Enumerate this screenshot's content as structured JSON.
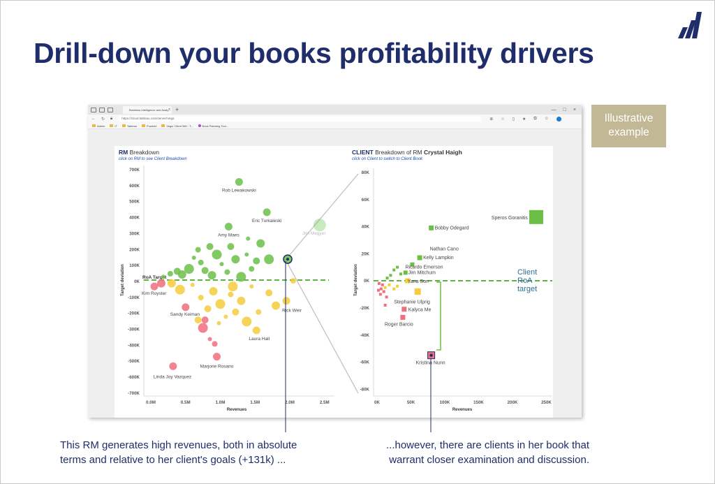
{
  "slide": {
    "title": "Drill-down your books profitability drivers",
    "badge_line1": "Illustrative",
    "badge_line2": "example",
    "caption_left_line1": "This RM generates high revenues, both in absolute",
    "caption_left_line2": "terms and relative to her client's goals (+131k) ...",
    "caption_right_line1": "...however, there are clients in her book that",
    "caption_right_line2": "warrant closer examination and discussion."
  },
  "browser": {
    "tab_title": "Business Intelligence and Analy...",
    "url": "https://cloud.tableau.com/server/Vega",
    "bookmarks": [
      "Admin",
      "IT",
      "Tableau",
      "Powerbi",
      "Vega: Client 360 - T...",
      "Book Planning Tool..."
    ]
  },
  "colors": {
    "navy": "#1f2d6b",
    "badge": "#c3b896",
    "green": "#6bbf46",
    "yellow": "#f5cc3c",
    "red": "#ef6f7c",
    "target_line": "#5fb342",
    "client_target_text": "#2b6e92"
  },
  "rm_chart": {
    "title_bold": "RM",
    "title_rest": " Breakdown",
    "subtitle": "click on RM to see Client Breakdown",
    "xlabel": "Revenues",
    "ylabel": "Target deviation",
    "target_label": "RoA Target",
    "x_ticks": [
      "0.0M",
      "0.5M",
      "1.0M",
      "1.5M",
      "2.0M",
      "2.5M"
    ],
    "y_ticks": [
      "700K",
      "600K",
      "500K",
      "400K",
      "300K",
      "200K",
      "100K",
      "0K",
      "-100K",
      "-200K",
      "-300K",
      "-400K",
      "-500K",
      "-600K",
      "-700K"
    ]
  },
  "client_chart": {
    "title_bold": "CLIENT",
    "title_mid": " Breakdown of RM ",
    "title_name": "Crystal Haigh",
    "subtitle": "click on Client to switch to Client Book",
    "xlabel": "Revenues",
    "ylabel": "Target deviation",
    "target_line1": "Client",
    "target_line2": "RoA",
    "target_line3": "target",
    "x_ticks": [
      "0K",
      "50K",
      "100K",
      "150K",
      "200K",
      "250K"
    ],
    "y_ticks": [
      "80K",
      "60K",
      "40K",
      "20K",
      "0K",
      "-20K",
      "-40K",
      "-60K",
      "-80K"
    ]
  },
  "chart_data": [
    {
      "type": "scatter",
      "title": "RM Breakdown",
      "xlabel": "Revenues",
      "ylabel": "Target deviation",
      "xlim": [
        0,
        2.5
      ],
      "ylim": [
        -700,
        700
      ],
      "x_unit": "M",
      "y_unit": "K",
      "reference_line": {
        "label": "RoA Target",
        "y": 0
      },
      "labeled_points": [
        {
          "name": "Rob Lewakowski",
          "x": 1.27,
          "y": 615,
          "color": "green"
        },
        {
          "name": "Eric Turkaleski",
          "x": 1.67,
          "y": 425,
          "color": "green"
        },
        {
          "name": "Amy Maes",
          "x": 1.12,
          "y": 335,
          "color": "green"
        },
        {
          "name": "Jim Megyer",
          "x": 2.43,
          "y": 345,
          "color": "green"
        },
        {
          "name": "Crystal Haigh",
          "x": 1.97,
          "y": 131,
          "color": "green"
        },
        {
          "name": "Kim Royster",
          "x": 0.05,
          "y": -40,
          "color": "red"
        },
        {
          "name": "Sandy Keiman",
          "x": 0.5,
          "y": -170,
          "color": "red"
        },
        {
          "name": "Rick Weir",
          "x": 1.95,
          "y": -130,
          "color": "yellow"
        },
        {
          "name": "Laura Hall",
          "x": 1.52,
          "y": -315,
          "color": "yellow"
        },
        {
          "name": "Marjorie Rosario",
          "x": 0.95,
          "y": -480,
          "color": "red"
        },
        {
          "name": "Linda Joy Vazquez",
          "x": 0.32,
          "y": -540,
          "color": "red"
        }
      ],
      "cluster_points": [
        {
          "x": 0.18,
          "y": 20,
          "color": "green"
        },
        {
          "x": 0.28,
          "y": 40,
          "color": "green"
        },
        {
          "x": 0.38,
          "y": 55,
          "color": "green"
        },
        {
          "x": 0.45,
          "y": 35,
          "color": "green"
        },
        {
          "x": 0.55,
          "y": 70,
          "color": "green"
        },
        {
          "x": 0.62,
          "y": 140,
          "color": "green"
        },
        {
          "x": 0.72,
          "y": 110,
          "color": "green"
        },
        {
          "x": 0.78,
          "y": 60,
          "color": "green"
        },
        {
          "x": 0.88,
          "y": 30,
          "color": "green"
        },
        {
          "x": 0.95,
          "y": 160,
          "color": "green"
        },
        {
          "x": 1.02,
          "y": 100,
          "color": "green"
        },
        {
          "x": 1.1,
          "y": 50,
          "color": "green"
        },
        {
          "x": 1.15,
          "y": 210,
          "color": "green"
        },
        {
          "x": 1.22,
          "y": 130,
          "color": "green"
        },
        {
          "x": 1.3,
          "y": 20,
          "color": "green"
        },
        {
          "x": 1.38,
          "y": 160,
          "color": "green"
        },
        {
          "x": 1.45,
          "y": 70,
          "color": "green"
        },
        {
          "x": 1.52,
          "y": 120,
          "color": "green"
        },
        {
          "x": 1.58,
          "y": 230,
          "color": "green"
        },
        {
          "x": 1.7,
          "y": 130,
          "color": "green"
        },
        {
          "x": 1.4,
          "y": 260,
          "color": "green"
        },
        {
          "x": 0.68,
          "y": 190,
          "color": "green"
        },
        {
          "x": 0.85,
          "y": 210,
          "color": "green"
        },
        {
          "x": 0.3,
          "y": -20,
          "color": "yellow"
        },
        {
          "x": 0.42,
          "y": -60,
          "color": "yellow"
        },
        {
          "x": 0.6,
          "y": -30,
          "color": "yellow"
        },
        {
          "x": 0.72,
          "y": -110,
          "color": "yellow"
        },
        {
          "x": 0.82,
          "y": -180,
          "color": "yellow"
        },
        {
          "x": 0.9,
          "y": -70,
          "color": "yellow"
        },
        {
          "x": 1.0,
          "y": -150,
          "color": "yellow"
        },
        {
          "x": 1.08,
          "y": -230,
          "color": "yellow"
        },
        {
          "x": 1.15,
          "y": -90,
          "color": "yellow"
        },
        {
          "x": 1.22,
          "y": -200,
          "color": "yellow"
        },
        {
          "x": 1.3,
          "y": -130,
          "color": "yellow"
        },
        {
          "x": 1.38,
          "y": -260,
          "color": "yellow"
        },
        {
          "x": 1.45,
          "y": -40,
          "color": "yellow"
        },
        {
          "x": 1.55,
          "y": -200,
          "color": "yellow"
        },
        {
          "x": 1.7,
          "y": -80,
          "color": "yellow"
        },
        {
          "x": 1.8,
          "y": -160,
          "color": "yellow"
        },
        {
          "x": 1.18,
          "y": -40,
          "color": "yellow"
        },
        {
          "x": 0.98,
          "y": -270,
          "color": "yellow"
        },
        {
          "x": 2.05,
          "y": -5,
          "color": "yellow"
        },
        {
          "x": 0.68,
          "y": -250,
          "color": "yellow"
        },
        {
          "x": 0.15,
          "y": -20,
          "color": "red"
        },
        {
          "x": 0.75,
          "y": -300,
          "color": "red"
        },
        {
          "x": 0.85,
          "y": -370,
          "color": "red"
        },
        {
          "x": 0.92,
          "y": -400,
          "color": "red"
        },
        {
          "x": 0.78,
          "y": -250,
          "color": "red"
        }
      ]
    },
    {
      "type": "scatter",
      "title": "CLIENT Breakdown of RM Crystal Haigh",
      "xlabel": "Revenues",
      "ylabel": "Target deviation",
      "xlim": [
        0,
        250
      ],
      "ylim": [
        -80,
        80
      ],
      "x_unit": "K",
      "y_unit": "K",
      "reference_line": {
        "label": "Client RoA target",
        "y": 0
      },
      "labeled_points": [
        {
          "name": "Speros Goranitis",
          "x": 235,
          "y": 47,
          "color": "green"
        },
        {
          "name": "Bobby Odegard",
          "x": 80,
          "y": 39,
          "color": "green"
        },
        {
          "name": "Nathan Cano",
          "x": 80,
          "y": 29,
          "color": "green"
        },
        {
          "name": "Kelly Lampkin",
          "x": 63,
          "y": 17,
          "color": "green"
        },
        {
          "name": "Ricardo Emerson",
          "x": 52,
          "y": 12,
          "color": "green"
        },
        {
          "name": "Jim Mitchum",
          "x": 42,
          "y": 6,
          "color": "green"
        },
        {
          "name": "Yana Sorr",
          "x": 45,
          "y": 0,
          "color": "yellow"
        },
        {
          "name": "Stephanie Ulprig",
          "x": 60,
          "y": -8,
          "color": "yellow"
        },
        {
          "name": "Kalyca Me",
          "x": 40,
          "y": -21,
          "color": "red"
        },
        {
          "name": "Roger Barcio",
          "x": 38,
          "y": -27,
          "color": "red"
        },
        {
          "name": "Kristina Nunn",
          "x": 80,
          "y": -55,
          "color": "red"
        }
      ],
      "cluster_points": [
        {
          "x": 20,
          "y": 4,
          "color": "green"
        },
        {
          "x": 25,
          "y": 8,
          "color": "green"
        },
        {
          "x": 30,
          "y": 10,
          "color": "green"
        },
        {
          "x": 15,
          "y": 2,
          "color": "green"
        },
        {
          "x": 35,
          "y": 5,
          "color": "green"
        },
        {
          "x": 18,
          "y": -3,
          "color": "yellow"
        },
        {
          "x": 25,
          "y": -6,
          "color": "yellow"
        },
        {
          "x": 30,
          "y": -4,
          "color": "yellow"
        },
        {
          "x": 12,
          "y": -5,
          "color": "yellow"
        },
        {
          "x": 3,
          "y": -2,
          "color": "red"
        },
        {
          "x": 6,
          "y": -6,
          "color": "red"
        },
        {
          "x": 5,
          "y": -10,
          "color": "red"
        },
        {
          "x": 8,
          "y": -3,
          "color": "red"
        },
        {
          "x": 10,
          "y": -8,
          "color": "red"
        },
        {
          "x": 14,
          "y": -12,
          "color": "red"
        },
        {
          "x": 12,
          "y": -18,
          "color": "red"
        },
        {
          "x": 2,
          "y": -7,
          "color": "red"
        }
      ]
    }
  ]
}
